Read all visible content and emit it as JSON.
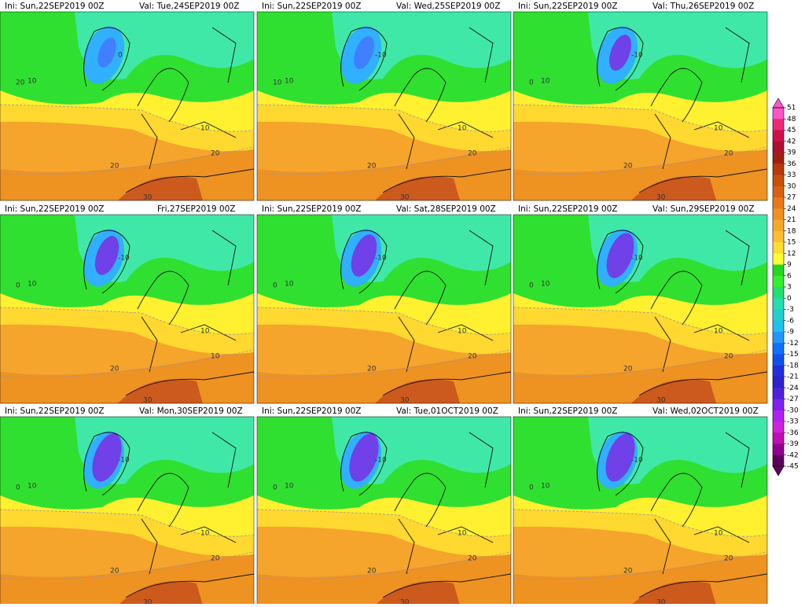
{
  "panels": [
    {
      "ini": "Ini: Sun,22SEP2019  00Z",
      "val": "Val: Tue,24SEP2019  00Z",
      "labels": [
        "0",
        "10",
        "10",
        "20",
        "20",
        "30",
        "20"
      ]
    },
    {
      "ini": "Ini: Sun,22SEP2019  00Z",
      "val": "Val: Wed,25SEP2019  00Z",
      "labels": [
        "-10",
        "10",
        "10",
        "20",
        "20",
        "30",
        "10"
      ]
    },
    {
      "ini": "Ini: Sun,22SEP2019  00Z",
      "val": "Val: Thu,26SEP2019  00Z",
      "labels": [
        "-10",
        "10",
        "10",
        "20",
        "20",
        "30",
        "0"
      ]
    },
    {
      "ini": "Ini: Sun,22SEP2019  00Z",
      "val": "Fri,27SEP2019  00Z",
      "labels": [
        "-10",
        "10",
        "10",
        "20",
        "10",
        "30",
        "0"
      ]
    },
    {
      "ini": "Ini: Sun,22SEP2019  00Z",
      "val": "Val: Sat,28SEP2019  00Z",
      "labels": [
        "-10",
        "10",
        "10",
        "20",
        "20",
        "30",
        "0"
      ]
    },
    {
      "ini": "Ini: Sun,22SEP2019  00Z",
      "val": "Val: Sun,29SEP2019  00Z",
      "labels": [
        "-10",
        "10",
        "10",
        "20",
        "20",
        "30",
        "0"
      ]
    },
    {
      "ini": "Ini: Sun,22SEP2019  00Z",
      "val": "Val: Mon,30SEP2019  00Z",
      "labels": [
        "-10",
        "10",
        "10",
        "20",
        "20",
        "30",
        "0"
      ]
    },
    {
      "ini": "Ini: Sun,22SEP2019  00Z",
      "val": "Val: Tue,01OCT2019  00Z",
      "labels": [
        "-10",
        "10",
        "10",
        "20",
        "20",
        "30",
        "0"
      ]
    },
    {
      "ini": "Ini: Sun,22SEP2019  00Z",
      "val": "Val: Wed,02OCT2019  00Z",
      "labels": [
        "-10",
        "10",
        "10",
        "20",
        "20",
        "30",
        "0"
      ]
    }
  ],
  "colorbar": {
    "ticks": [
      51,
      48,
      45,
      42,
      39,
      36,
      33,
      30,
      27,
      24,
      21,
      18,
      15,
      12,
      9,
      6,
      3,
      0,
      -3,
      -6,
      -9,
      -12,
      -15,
      -18,
      -21,
      -24,
      -27,
      -30,
      -33,
      -36,
      -39,
      -42,
      -45
    ],
    "colors": [
      "#ff55c8",
      "#f02878",
      "#d0104a",
      "#b01030",
      "#a02010",
      "#b83a0a",
      "#c8500a",
      "#d86010",
      "#e87818",
      "#f09020",
      "#f8a828",
      "#fcc030",
      "#ffdc30",
      "#ffff30",
      "#20d820",
      "#30f030",
      "#20e070",
      "#20e0b0",
      "#20d0d0",
      "#20c0f0",
      "#2098ff",
      "#1070ff",
      "#1050f0",
      "#2030e0",
      "#3020d0",
      "#5020e0",
      "#8020f0",
      "#b020f0",
      "#d020e0",
      "#c010b0",
      "#900090",
      "#600060"
    ]
  }
}
